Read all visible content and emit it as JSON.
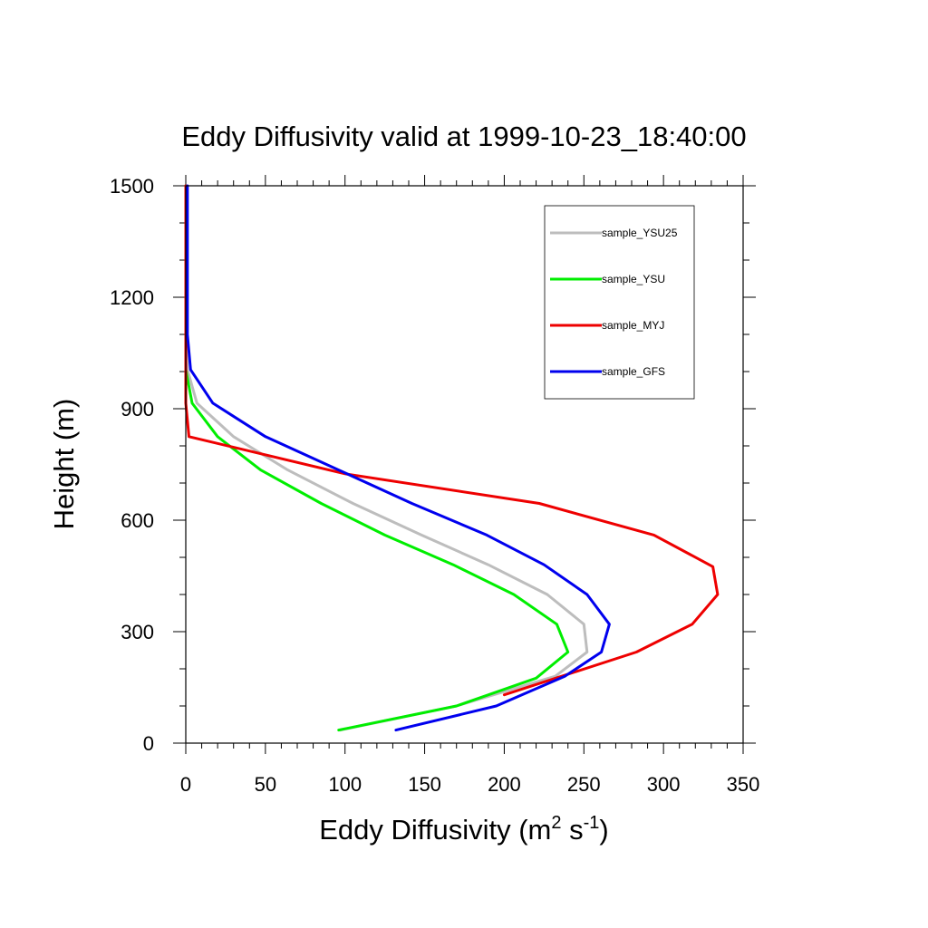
{
  "chart_data": {
    "type": "line",
    "title": "Eddy Diffusivity valid at 1999-10-23_18:40:00",
    "xlabel": "Eddy Diffusivity (m",
    "xlabel_sup1": "2",
    "xlabel_mid": " s",
    "xlabel_sup2": "-1",
    "xlabel_end": ")",
    "ylabel": "Height (m)",
    "xlim": [
      0,
      350
    ],
    "ylim": [
      0,
      1500
    ],
    "x_ticks": [
      "0",
      "50",
      "100",
      "150",
      "200",
      "250",
      "300",
      "350"
    ],
    "y_ticks": [
      "0",
      "300",
      "600",
      "900",
      "1200",
      "1500"
    ],
    "legend_position": "top-right",
    "series": [
      {
        "name": "sample_YSU25",
        "color": "#bdbdbd",
        "points": [
          [
            97,
            35
          ],
          [
            170,
            100
          ],
          [
            232,
            180
          ],
          [
            252,
            245
          ],
          [
            250,
            320
          ],
          [
            227,
            400
          ],
          [
            190,
            480
          ],
          [
            148,
            560
          ],
          [
            105,
            645
          ],
          [
            64,
            735
          ],
          [
            30,
            825
          ],
          [
            7,
            915
          ],
          [
            1,
            1005
          ],
          [
            0,
            1100
          ],
          [
            0,
            1200
          ],
          [
            0,
            1300
          ],
          [
            0,
            1400
          ],
          [
            0,
            1500
          ]
        ]
      },
      {
        "name": "sample_YSU",
        "color": "#00ee00",
        "points": [
          [
            96,
            35
          ],
          [
            170,
            100
          ],
          [
            220,
            175
          ],
          [
            240,
            245
          ],
          [
            233,
            320
          ],
          [
            206,
            400
          ],
          [
            168,
            480
          ],
          [
            125,
            560
          ],
          [
            85,
            645
          ],
          [
            47,
            735
          ],
          [
            20,
            825
          ],
          [
            4,
            915
          ],
          [
            0,
            1005
          ],
          [
            0,
            1100
          ],
          [
            0,
            1200
          ],
          [
            0,
            1300
          ],
          [
            0,
            1400
          ],
          [
            0,
            1500
          ]
        ]
      },
      {
        "name": "sample_MYJ",
        "color": "#ee0000",
        "points": [
          [
            200,
            130
          ],
          [
            283,
            245
          ],
          [
            318,
            320
          ],
          [
            334,
            400
          ],
          [
            331,
            475
          ],
          [
            294,
            560
          ],
          [
            222,
            645
          ],
          [
            100,
            725
          ],
          [
            2,
            825
          ],
          [
            0,
            915
          ],
          [
            0,
            1005
          ],
          [
            0,
            1100
          ],
          [
            0,
            1200
          ],
          [
            0,
            1300
          ],
          [
            0,
            1400
          ],
          [
            0,
            1500
          ]
        ]
      },
      {
        "name": "sample_GFS",
        "color": "#0000ee",
        "points": [
          [
            132,
            35
          ],
          [
            195,
            100
          ],
          [
            238,
            180
          ],
          [
            261,
            245
          ],
          [
            266,
            320
          ],
          [
            252,
            400
          ],
          [
            225,
            480
          ],
          [
            189,
            560
          ],
          [
            142,
            645
          ],
          [
            96,
            735
          ],
          [
            50,
            825
          ],
          [
            17,
            915
          ],
          [
            3,
            1005
          ],
          [
            1,
            1100
          ],
          [
            1,
            1200
          ],
          [
            1,
            1300
          ],
          [
            1,
            1400
          ],
          [
            1,
            1500
          ]
        ]
      }
    ]
  }
}
